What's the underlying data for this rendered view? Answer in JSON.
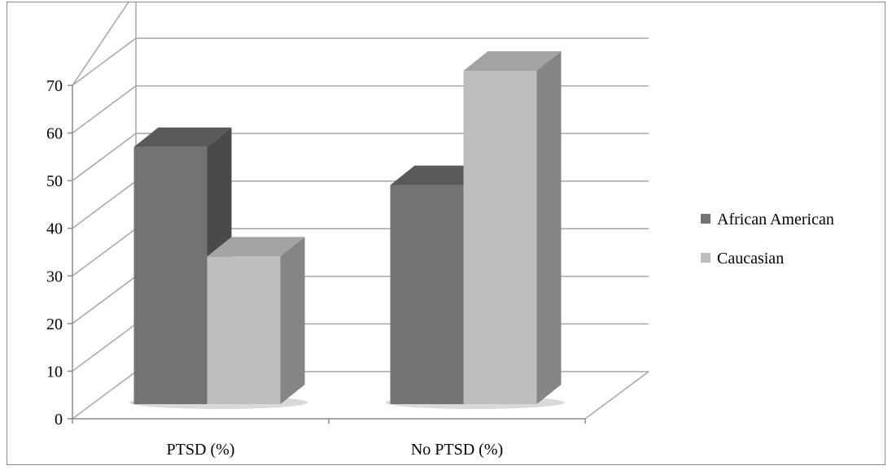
{
  "chart_data": {
    "type": "bar",
    "style": "3d-clustered-column",
    "categories": [
      "PTSD (%)",
      "No PTSD (%)"
    ],
    "series": [
      {
        "name": "African American",
        "values": [
          54,
          46
        ],
        "color": "#737373",
        "top_color": "#5a5a5a",
        "side_color": "#4a4a4a"
      },
      {
        "name": "Caucasian",
        "values": [
          31,
          70
        ],
        "color": "#bdbdbd",
        "top_color": "#a3a3a3",
        "side_color": "#858585"
      }
    ],
    "ylim": [
      0,
      70
    ],
    "yticks": [
      "0",
      "10",
      "20",
      "30",
      "40",
      "50",
      "60",
      "70"
    ],
    "grid": true,
    "legend_position": "right",
    "title": "",
    "xlabel": "",
    "ylabel": ""
  }
}
